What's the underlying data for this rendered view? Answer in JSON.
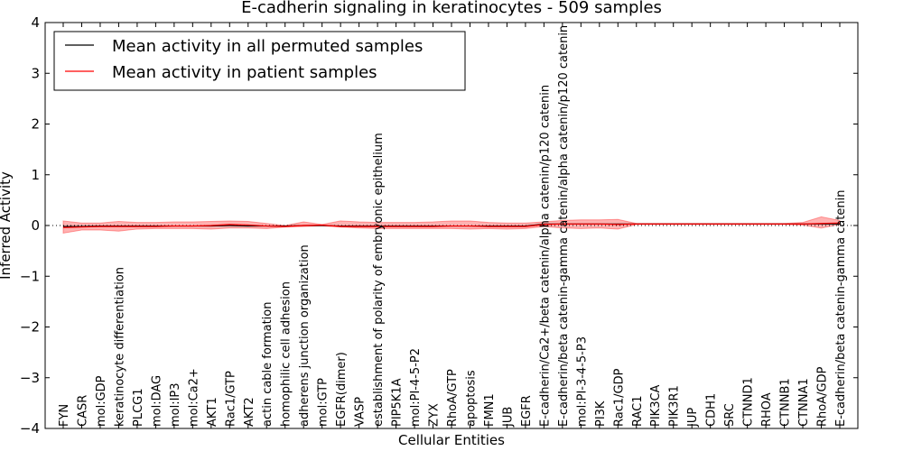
{
  "chart_data": {
    "type": "line",
    "title": "E-cadherin signaling in keratinocytes - 509 samples",
    "xlabel": "Cellular Entities",
    "ylabel": "Inferred Activity",
    "ylim": [
      -4,
      4
    ],
    "yticks": [
      -4,
      -3,
      -2,
      -1,
      0,
      1,
      2,
      3,
      4
    ],
    "ytick_labels": [
      "−4",
      "−3",
      "−2",
      "−1",
      "0",
      "1",
      "2",
      "3",
      "4"
    ],
    "categories": [
      "FYN",
      "CASR",
      "mol:GDP",
      "keratinocyte differentiation",
      "PLCG1",
      "mol:DAG",
      "mol:IP3",
      "mol:Ca2+",
      "AKT1",
      "Rac1/GTP",
      "AKT2",
      "actin cable formation",
      "homophilic cell adhesion",
      "adherens junction organization",
      "mol:GTP",
      "EGFR(dimer)",
      "VASP",
      "establishment of polarity of embryonic epithelium",
      "PIP5K1A",
      "mol:PI-4-5-P2",
      "ZYX",
      "RhoA/GTP",
      "apoptosis",
      "FMN1",
      "JUB",
      "EGFR",
      "E-cadherin/Ca2+/beta catenin/alpha catenin/p120 catenin",
      "E-cadherin/beta catenin-gamma catenin/alpha catenin/p120 catenin",
      "mol:PI-3-4-5-P3",
      "PI3K",
      "Rac1/GDP",
      "RAC1",
      "PIK3CA",
      "PIK3R1",
      "JUP",
      "CDH1",
      "SRC",
      "CTNND1",
      "RHOA",
      "CTNNB1",
      "CTNNA1",
      "RhoA/GDP",
      "E-cadherin/beta catenin-gamma catenin"
    ],
    "series": [
      {
        "name": "Mean activity in all permuted samples",
        "color": "#000000",
        "values": [
          -0.02,
          -0.02,
          -0.01,
          -0.01,
          -0.01,
          -0.01,
          -0.01,
          -0.01,
          -0.01,
          0.0,
          -0.01,
          -0.01,
          -0.01,
          0.0,
          0.0,
          -0.01,
          -0.01,
          -0.01,
          -0.01,
          -0.01,
          -0.01,
          -0.01,
          -0.01,
          -0.01,
          -0.01,
          -0.01,
          0.03,
          0.03,
          0.03,
          0.03,
          0.03,
          0.03,
          0.03,
          0.03,
          0.03,
          0.03,
          0.03,
          0.03,
          0.03,
          0.03,
          0.03,
          0.03,
          0.03
        ]
      },
      {
        "name": "Mean activity in patient samples",
        "color": "#ff0000",
        "values": [
          -0.04,
          -0.03,
          -0.02,
          -0.02,
          -0.02,
          -0.02,
          -0.01,
          -0.01,
          0.0,
          0.02,
          0.01,
          -0.01,
          -0.02,
          0.0,
          0.01,
          -0.02,
          -0.02,
          -0.02,
          -0.02,
          -0.02,
          -0.02,
          -0.01,
          -0.01,
          -0.02,
          -0.02,
          -0.02,
          0.02,
          0.03,
          0.03,
          0.03,
          0.02,
          0.03,
          0.03,
          0.03,
          0.03,
          0.03,
          0.03,
          0.03,
          0.03,
          0.03,
          0.03,
          0.04,
          0.05
        ],
        "band_lower": [
          -0.15,
          -0.09,
          -0.09,
          -0.11,
          -0.07,
          -0.06,
          -0.06,
          -0.06,
          -0.07,
          -0.05,
          -0.05,
          -0.06,
          -0.03,
          -0.02,
          -0.01,
          -0.03,
          -0.05,
          -0.06,
          -0.06,
          -0.06,
          -0.06,
          -0.06,
          -0.07,
          -0.06,
          -0.07,
          -0.06,
          -0.02,
          -0.05,
          -0.06,
          -0.05,
          -0.07,
          0.02,
          0.02,
          0.02,
          0.02,
          0.02,
          0.02,
          0.02,
          0.02,
          0.02,
          0.01,
          -0.05,
          0.02
        ],
        "band_upper": [
          0.09,
          0.05,
          0.05,
          0.08,
          0.06,
          0.06,
          0.07,
          0.07,
          0.08,
          0.09,
          0.08,
          0.04,
          0.0,
          0.07,
          0.02,
          0.09,
          0.07,
          0.06,
          0.06,
          0.06,
          0.07,
          0.09,
          0.09,
          0.06,
          0.05,
          0.05,
          0.07,
          0.1,
          0.11,
          0.11,
          0.12,
          0.04,
          0.04,
          0.04,
          0.04,
          0.04,
          0.04,
          0.04,
          0.04,
          0.04,
          0.06,
          0.17,
          0.1
        ]
      }
    ],
    "reference_line": 0,
    "legend": "top-left",
    "grid": false
  }
}
